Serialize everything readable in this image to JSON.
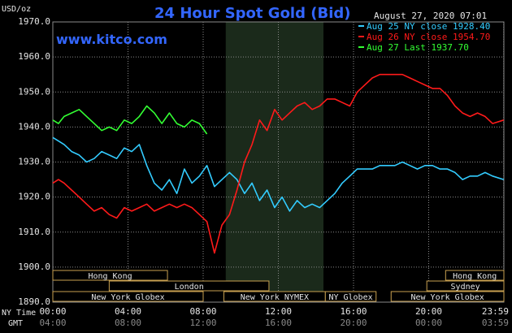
{
  "title": "24 Hour Spot Gold (Bid)",
  "site": "www.kitco.com",
  "unit_label": "USD/oz",
  "date_label": "August 27, 2020 07:01",
  "x_label_ny": "NY Time",
  "x_label_gmt": "GMT",
  "colors": {
    "background": "#000000",
    "plot_background": "#000000",
    "grid": "#8a8a8a",
    "shade": "#1b2a1b",
    "title": "#3366ff",
    "aug25": "#33ccff",
    "aug26": "#ff1a1a",
    "aug27": "#33ff33",
    "band_border": "#c8a050"
  },
  "chart_data": {
    "type": "line",
    "title": "24 Hour Spot Gold (Bid)",
    "ylabel": "USD/oz",
    "xlabel": "NY Time",
    "ylim": [
      1890,
      1970
    ],
    "xlim": [
      0,
      24
    ],
    "grid": true,
    "legend_position": "top-right",
    "y_ticks": [
      "1970.0",
      "1960.0",
      "1950.0",
      "1940.0",
      "1930.0",
      "1920.0",
      "1910.0",
      "1900.0",
      "1890.0"
    ],
    "x_ticks_ny": [
      "00:00",
      "04:00",
      "08:00",
      "12:00",
      "16:00",
      "20:00",
      "23:59"
    ],
    "x_ticks_gmt": [
      "04:00",
      "08:00",
      "12:00",
      "16:00",
      "20:00",
      "00:00",
      "03:59"
    ],
    "shaded_range_hours": [
      9.2,
      14.4
    ],
    "series": [
      {
        "name": "Aug 25 NY close 1928.40",
        "color": "#33ccff",
        "x": [
          0,
          0.3,
          0.6,
          1.0,
          1.4,
          1.8,
          2.2,
          2.6,
          3.0,
          3.4,
          3.8,
          4.2,
          4.6,
          5.0,
          5.4,
          5.8,
          6.2,
          6.6,
          7.0,
          7.4,
          7.8,
          8.2,
          8.6,
          9.0,
          9.4,
          9.8,
          10.2,
          10.6,
          11.0,
          11.4,
          11.8,
          12.2,
          12.6,
          13.0,
          13.4,
          13.8,
          14.2,
          14.6,
          15.0,
          15.4,
          15.8,
          16.2,
          16.6,
          17.0,
          17.4,
          17.8,
          18.2,
          18.6,
          19.0,
          19.4,
          19.8,
          20.2,
          20.6,
          21.0,
          21.4,
          21.8,
          22.2,
          22.6,
          23.0,
          23.4,
          23.99
        ],
        "values": [
          1937,
          1936,
          1935,
          1933,
          1932,
          1930,
          1931,
          1933,
          1932,
          1931,
          1934,
          1933,
          1935,
          1929,
          1924,
          1922,
          1925,
          1921,
          1928,
          1924,
          1926,
          1929,
          1923,
          1925,
          1927,
          1925,
          1921,
          1924,
          1919,
          1922,
          1917,
          1920,
          1916,
          1919,
          1917,
          1918,
          1917,
          1919,
          1921,
          1924,
          1926,
          1928,
          1928,
          1928,
          1929,
          1929,
          1929,
          1930,
          1929,
          1928,
          1929,
          1929,
          1928,
          1928,
          1927,
          1925,
          1926,
          1926,
          1927,
          1926,
          1925
        ]
      },
      {
        "name": "Aug 26 NY close 1954.70",
        "color": "#ff1a1a",
        "x": [
          0,
          0.3,
          0.6,
          1.0,
          1.4,
          1.8,
          2.2,
          2.6,
          3.0,
          3.4,
          3.8,
          4.2,
          4.6,
          5.0,
          5.4,
          5.8,
          6.2,
          6.6,
          7.0,
          7.4,
          7.8,
          8.2,
          8.6,
          9.0,
          9.4,
          9.8,
          10.2,
          10.6,
          11.0,
          11.4,
          11.8,
          12.2,
          12.6,
          13.0,
          13.4,
          13.8,
          14.2,
          14.6,
          15.0,
          15.4,
          15.8,
          16.2,
          16.6,
          17.0,
          17.4,
          17.8,
          18.2,
          18.6,
          19.0,
          19.4,
          19.8,
          20.2,
          20.6,
          21.0,
          21.4,
          21.8,
          22.2,
          22.6,
          23.0,
          23.4,
          23.99
        ],
        "values": [
          1924,
          1925,
          1924,
          1922,
          1920,
          1918,
          1916,
          1917,
          1915,
          1914,
          1917,
          1916,
          1917,
          1918,
          1916,
          1917,
          1918,
          1917,
          1918,
          1917,
          1915,
          1913,
          1904,
          1912,
          1915,
          1922,
          1930,
          1935,
          1942,
          1939,
          1945,
          1942,
          1944,
          1946,
          1947,
          1945,
          1946,
          1948,
          1948,
          1947,
          1946,
          1950,
          1952,
          1954,
          1955,
          1955,
          1955,
          1955,
          1954,
          1953,
          1952,
          1951,
          1951,
          1949,
          1946,
          1944,
          1943,
          1944,
          1943,
          1941,
          1942
        ]
      },
      {
        "name": "Aug 27 Last 1937.70",
        "color": "#33ff33",
        "x": [
          0,
          0.3,
          0.6,
          1.0,
          1.4,
          1.8,
          2.2,
          2.6,
          3.0,
          3.4,
          3.8,
          4.2,
          4.6,
          5.0,
          5.4,
          5.8,
          6.2,
          6.6,
          7.0,
          7.4,
          7.8,
          8.2
        ],
        "values": [
          1942,
          1941,
          1943,
          1944,
          1945,
          1943,
          1941,
          1939,
          1940,
          1939,
          1942,
          1941,
          1943,
          1946,
          1944,
          1941,
          1944,
          1941,
          1940,
          1942,
          1941,
          1938
        ]
      }
    ]
  },
  "sessions": {
    "rows": [
      {
        "bands": [
          {
            "label": "Hong Kong",
            "start": 0,
            "end": 6.1
          },
          {
            "label": "Hong Kong",
            "start": 20.9,
            "end": 24.0
          }
        ]
      },
      {
        "bands": [
          {
            "label": "London",
            "start": 3.0,
            "end": 11.5
          },
          {
            "label": "Sydney",
            "start": 19.9,
            "end": 24.0
          }
        ]
      },
      {
        "bands": [
          {
            "label": "New York Globex",
            "start": 0,
            "end": 8.0
          },
          {
            "label": "New York NYMEX",
            "start": 9.1,
            "end": 14.5
          },
          {
            "label": "NY Globex",
            "start": 14.5,
            "end": 17.2
          },
          {
            "label": "New York Globex",
            "start": 18.0,
            "end": 24.0
          }
        ]
      }
    ]
  }
}
